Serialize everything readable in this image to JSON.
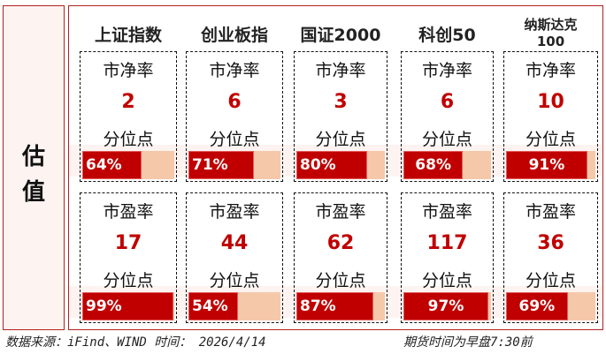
{
  "side_label": [
    "估",
    "值"
  ],
  "indices": [
    {
      "name": "上证指数",
      "pb": "2",
      "pb_pct": "64%",
      "pb_pct_val": 64,
      "pe": "17",
      "pe_pct": "99%",
      "pe_pct_val": 99
    },
    {
      "name": "创业板指",
      "pb": "6",
      "pb_pct": "71%",
      "pb_pct_val": 71,
      "pe": "44",
      "pe_pct": "54%",
      "pe_pct_val": 54
    },
    {
      "name": "国证2000",
      "pb": "3",
      "pb_pct": "80%",
      "pb_pct_val": 80,
      "pe": "62",
      "pe_pct": "87%",
      "pe_pct_val": 87
    },
    {
      "name": "科创50",
      "pb": "6",
      "pb_pct": "68%",
      "pb_pct_val": 68,
      "pe": "117",
      "pe_pct": "97%",
      "pe_pct_val": 97
    },
    {
      "name": "纳斯达克\n100",
      "pb": "10",
      "pb_pct": "91%",
      "pb_pct_val": 91,
      "pe": "36",
      "pe_pct": "69%",
      "pe_pct_val": 69
    }
  ],
  "labels": {
    "pb": "市净率",
    "pe": "市盈率",
    "percentile": "分位点"
  },
  "footer": {
    "source": "数据来源：iFind、WIND 时间： 2026/4/14",
    "note": "期货时间为早盘7:30前"
  },
  "colors": {
    "accent": "#c00000",
    "bar_bg": "#f6c8aa",
    "panel_bg": "#fdf3f1",
    "border": "#b22222"
  }
}
